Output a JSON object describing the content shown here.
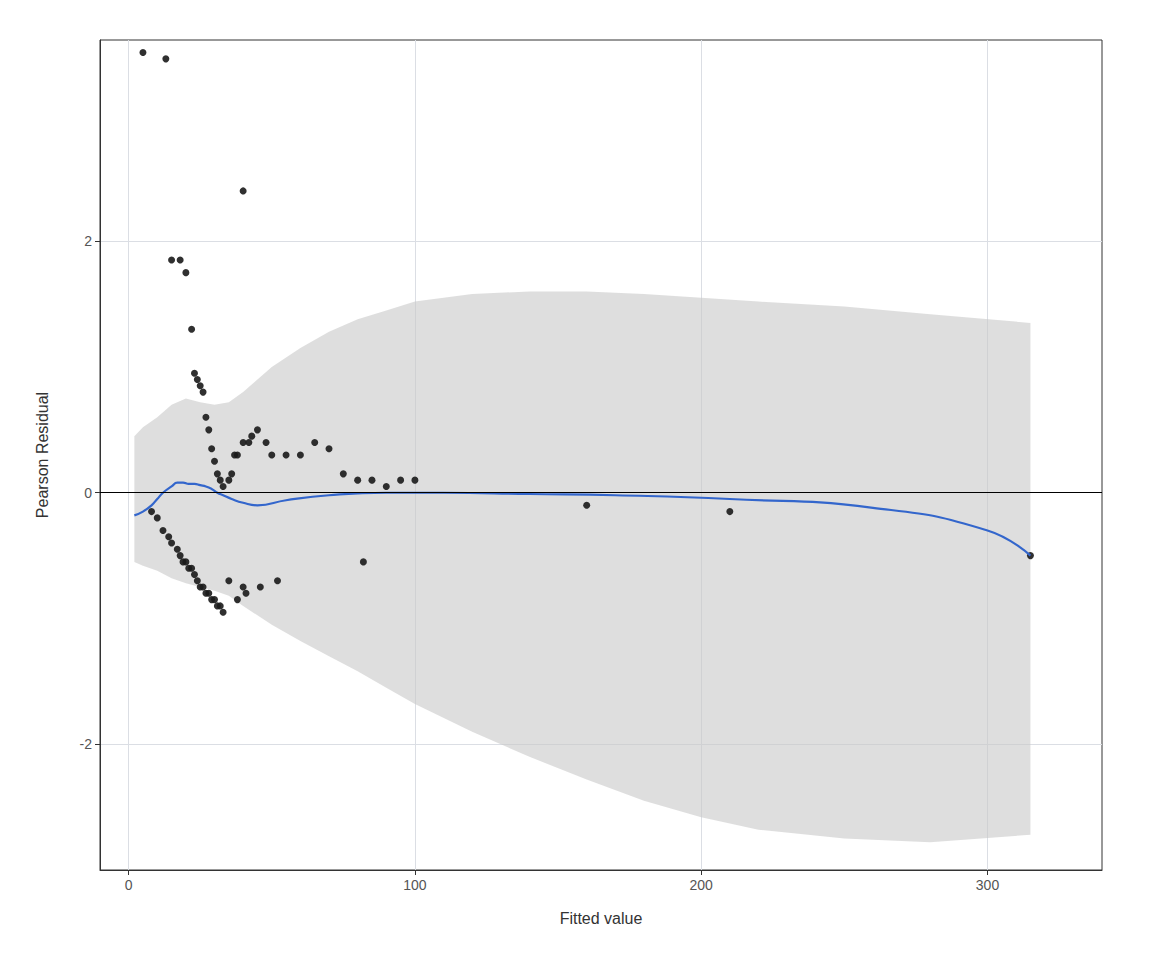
{
  "chart_data": {
    "type": "scatter",
    "xlabel": "Fitted value",
    "ylabel": "Pearson Residual",
    "xlim": [
      -10,
      340
    ],
    "ylim": [
      -3.0,
      3.6
    ],
    "xticks": [
      0,
      100,
      200,
      300
    ],
    "yticks": [
      -2,
      0,
      2
    ],
    "grid": true,
    "hline_y": 0,
    "series": [
      {
        "type": "band",
        "color": "#c8c8c8",
        "x": [
          2,
          5,
          10,
          15,
          20,
          25,
          30,
          35,
          40,
          50,
          60,
          70,
          80,
          90,
          100,
          120,
          140,
          160,
          180,
          200,
          220,
          250,
          280,
          315
        ],
        "upper": [
          0.45,
          0.52,
          0.6,
          0.7,
          0.75,
          0.72,
          0.7,
          0.72,
          0.8,
          1.0,
          1.15,
          1.28,
          1.38,
          1.45,
          1.52,
          1.58,
          1.6,
          1.6,
          1.58,
          1.55,
          1.52,
          1.48,
          1.42,
          1.35
        ],
        "lower": [
          -0.55,
          -0.58,
          -0.62,
          -0.68,
          -0.72,
          -0.75,
          -0.78,
          -0.82,
          -0.9,
          -1.05,
          -1.18,
          -1.3,
          -1.42,
          -1.55,
          -1.68,
          -1.9,
          -2.1,
          -2.28,
          -2.45,
          -2.58,
          -2.68,
          -2.75,
          -2.78,
          -2.72
        ]
      },
      {
        "type": "scatter",
        "color": "#1a1a1a",
        "x": [
          5,
          13,
          40,
          15,
          18,
          20,
          22,
          23,
          24,
          25,
          26,
          27,
          28,
          29,
          30,
          31,
          32,
          33,
          35,
          36,
          37,
          38,
          40,
          42,
          43,
          45,
          48,
          50,
          55,
          60,
          65,
          70,
          75,
          80,
          85,
          90,
          95,
          100,
          315,
          8,
          10,
          12,
          14,
          15,
          17,
          18,
          19,
          20,
          21,
          22,
          23,
          24,
          25,
          26,
          27,
          28,
          29,
          30,
          31,
          32,
          33,
          35,
          38,
          40,
          41,
          46,
          52,
          82,
          160,
          210
        ],
        "values": [
          3.5,
          3.45,
          2.4,
          1.85,
          1.85,
          1.75,
          1.3,
          0.95,
          0.9,
          0.85,
          0.8,
          0.6,
          0.5,
          0.35,
          0.25,
          0.15,
          0.1,
          0.05,
          0.1,
          0.15,
          0.3,
          0.3,
          0.4,
          0.4,
          0.45,
          0.5,
          0.4,
          0.3,
          0.3,
          0.3,
          0.4,
          0.35,
          0.15,
          0.1,
          0.1,
          0.05,
          0.1,
          0.1,
          -0.5,
          -0.15,
          -0.2,
          -0.3,
          -0.35,
          -0.4,
          -0.45,
          -0.5,
          -0.55,
          -0.55,
          -0.6,
          -0.6,
          -0.65,
          -0.7,
          -0.75,
          -0.75,
          -0.8,
          -0.8,
          -0.85,
          -0.85,
          -0.9,
          -0.9,
          -0.95,
          -0.7,
          -0.85,
          -0.75,
          -0.8,
          -0.75,
          -0.7,
          -0.55,
          -0.1,
          -0.15
        ]
      },
      {
        "type": "line",
        "color": "#3366cc",
        "x": [
          2,
          5,
          8,
          10,
          12,
          15,
          17,
          19,
          21,
          23,
          25,
          27,
          29,
          31,
          33,
          36,
          40,
          45,
          55,
          70,
          90,
          110,
          140,
          170,
          210,
          260,
          300,
          315
        ],
        "values": [
          -0.18,
          -0.15,
          -0.1,
          -0.05,
          0.0,
          0.05,
          0.08,
          0.08,
          0.07,
          0.07,
          0.06,
          0.05,
          0.03,
          0.0,
          -0.02,
          -0.05,
          -0.08,
          -0.1,
          -0.06,
          -0.02,
          0.0,
          0.0,
          -0.01,
          -0.02,
          -0.05,
          -0.12,
          -0.3,
          -0.5
        ]
      }
    ]
  }
}
